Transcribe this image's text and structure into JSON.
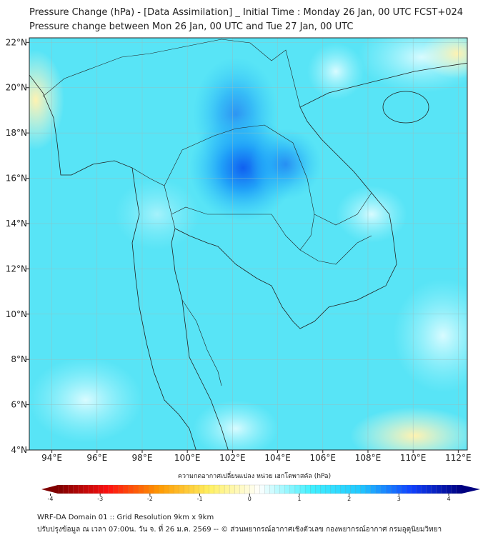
{
  "header": {
    "title": "Pressure Change (hPa) - [Data Assimilation] _ Initial Time : Monday 26 Jan, 00 UTC FCST+024",
    "subtitle": "Pressure change between Mon 26 Jan, 00 UTC and Tue 27 Jan, 00 UTC"
  },
  "map": {
    "lat_labels": [
      "22°N",
      "20°N",
      "18°N",
      "16°N",
      "14°N",
      "12°N",
      "10°N",
      "8°N",
      "6°N",
      "4°N"
    ],
    "lat_values": [
      22,
      20,
      18,
      16,
      14,
      12,
      10,
      8,
      6,
      4
    ],
    "lon_labels": [
      "94°E",
      "96°E",
      "98°E",
      "100°E",
      "102°E",
      "104°E",
      "106°E",
      "108°E",
      "110°E",
      "112°E"
    ],
    "lon_values": [
      94,
      96,
      98,
      100,
      102,
      104,
      106,
      108,
      110,
      112
    ],
    "extent": {
      "lon": [
        93.0,
        112.4
      ],
      "lat": [
        4.0,
        22.2
      ]
    }
  },
  "colorbar": {
    "label": "ความกดอากาศเปลี่ยนแปลง หน่วย เฮกโตพาสคัล (hPa)",
    "ticks": [
      "-4",
      "-3",
      "-2",
      "-1",
      "0",
      "1",
      "2",
      "3",
      "4"
    ],
    "range": [
      -4,
      4
    ],
    "colors": [
      "#800000",
      "#ff1010",
      "#ff9900",
      "#fff060",
      "#ffffff",
      "#40f0ff",
      "#20c8ff",
      "#1040ff",
      "#000080"
    ]
  },
  "footer": {
    "line1": "WRF-DA Domain 01 :: Grid Resolution 9km x 9km",
    "line2": "ปรับปรุงข้อมูล ณ เวลา 07:00น. วัน จ. ที่ 26 ม.ค. 2569 -- © ส่วนพยากรณ์อากาศเชิงตัวเลข กองพยากรณ์อากาศ กรมอุตุนิยมวิทยา"
  }
}
